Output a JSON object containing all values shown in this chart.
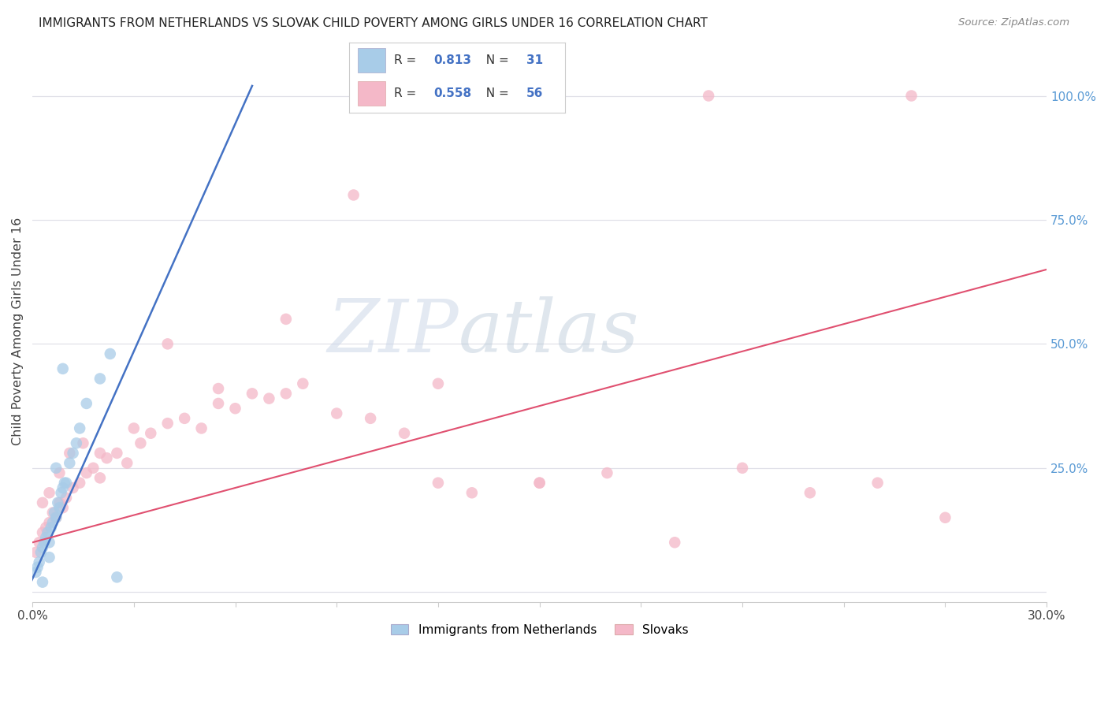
{
  "title": "IMMIGRANTS FROM NETHERLANDS VS SLOVAK CHILD POVERTY AMONG GIRLS UNDER 16 CORRELATION CHART",
  "source": "Source: ZipAtlas.com",
  "ylabel": "Child Poverty Among Girls Under 16",
  "xlim": [
    0.0,
    30.0
  ],
  "ylim": [
    -2.0,
    107.0
  ],
  "yticks_right": [
    0.0,
    25.0,
    50.0,
    75.0,
    100.0
  ],
  "ytick_labels_right": [
    "",
    "25.0%",
    "50.0%",
    "75.0%",
    "100.0%"
  ],
  "legend_blue_r": "0.813",
  "legend_blue_n": "31",
  "legend_pink_r": "0.558",
  "legend_pink_n": "56",
  "legend_label_blue": "Immigrants from Netherlands",
  "legend_label_pink": "Slovaks",
  "blue_color": "#a8cce8",
  "blue_line_color": "#4472c4",
  "pink_color": "#f4b8c8",
  "pink_line_color": "#e05070",
  "watermark_zip": "ZIP",
  "watermark_atlas": "atlas",
  "blue_scatter_x": [
    0.1,
    0.15,
    0.2,
    0.25,
    0.3,
    0.35,
    0.4,
    0.45,
    0.5,
    0.55,
    0.6,
    0.65,
    0.7,
    0.75,
    0.8,
    0.85,
    0.9,
    0.95,
    1.0,
    1.1,
    1.2,
    1.4,
    1.6,
    2.0,
    2.3,
    2.5,
    0.3,
    0.5,
    0.7,
    1.3,
    0.9
  ],
  "blue_scatter_y": [
    4.0,
    5.0,
    6.0,
    8.0,
    9.0,
    10.0,
    11.0,
    12.0,
    10.0,
    13.0,
    14.0,
    16.0,
    15.0,
    18.0,
    17.0,
    20.0,
    21.0,
    22.0,
    22.0,
    26.0,
    28.0,
    33.0,
    38.0,
    43.0,
    48.0,
    3.0,
    2.0,
    7.0,
    25.0,
    30.0,
    45.0
  ],
  "blue_line_x": [
    -0.5,
    6.5
  ],
  "blue_line_y": [
    -5.0,
    102.0
  ],
  "pink_scatter_x": [
    0.1,
    0.2,
    0.3,
    0.4,
    0.5,
    0.6,
    0.7,
    0.8,
    0.9,
    1.0,
    1.2,
    1.4,
    1.6,
    1.8,
    2.0,
    2.2,
    2.5,
    2.8,
    3.2,
    3.5,
    4.0,
    4.5,
    5.0,
    5.5,
    6.0,
    6.5,
    7.0,
    7.5,
    8.0,
    9.0,
    10.0,
    11.0,
    12.0,
    13.0,
    15.0,
    17.0,
    19.0,
    21.0,
    23.0,
    25.0,
    27.0,
    0.3,
    0.5,
    0.8,
    1.1,
    1.5,
    2.0,
    3.0,
    4.0,
    5.5,
    7.5,
    9.5,
    12.0,
    15.0,
    20.0,
    26.0
  ],
  "pink_scatter_y": [
    8.0,
    10.0,
    12.0,
    13.0,
    14.0,
    16.0,
    15.0,
    18.0,
    17.0,
    19.0,
    21.0,
    22.0,
    24.0,
    25.0,
    23.0,
    27.0,
    28.0,
    26.0,
    30.0,
    32.0,
    34.0,
    35.0,
    33.0,
    38.0,
    37.0,
    40.0,
    39.0,
    40.0,
    42.0,
    36.0,
    35.0,
    32.0,
    22.0,
    20.0,
    22.0,
    24.0,
    10.0,
    25.0,
    20.0,
    22.0,
    15.0,
    18.0,
    20.0,
    24.0,
    28.0,
    30.0,
    28.0,
    33.0,
    50.0,
    41.0,
    55.0,
    80.0,
    42.0,
    22.0,
    100.0,
    100.0
  ],
  "pink_line_x": [
    0.0,
    30.0
  ],
  "pink_line_y": [
    10.0,
    65.0
  ],
  "grid_color": "#e0e0e8",
  "spine_color": "#cccccc"
}
